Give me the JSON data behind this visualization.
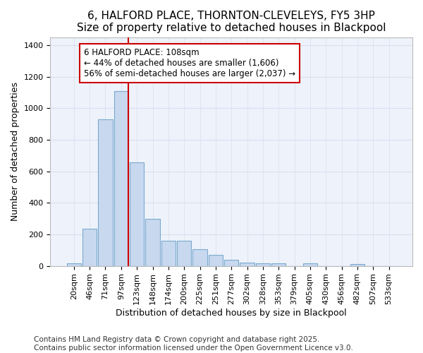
{
  "title_line1": "6, HALFORD PLACE, THORNTON-CLEVELEYS, FY5 3HP",
  "title_line2": "Size of property relative to detached houses in Blackpool",
  "xlabel": "Distribution of detached houses by size in Blackpool",
  "ylabel": "Number of detached properties",
  "bar_color": "#c8d8ee",
  "bar_edge_color": "#7aaad0",
  "background_color": "#eef2fa",
  "fig_background_color": "#ffffff",
  "grid_color": "#d8dff0",
  "annotation_text_line1": "6 HALFORD PLACE: 108sqm",
  "annotation_text_line2": "← 44% of detached houses are smaller (1,606)",
  "annotation_text_line3": "56% of semi-detached houses are larger (2,037) →",
  "annotation_box_color": "#ffffff",
  "annotation_box_edge_color": "#cc0000",
  "categories": [
    "20sqm",
    "46sqm",
    "71sqm",
    "97sqm",
    "123sqm",
    "148sqm",
    "174sqm",
    "200sqm",
    "225sqm",
    "251sqm",
    "277sqm",
    "302sqm",
    "328sqm",
    "353sqm",
    "379sqm",
    "405sqm",
    "430sqm",
    "456sqm",
    "482sqm",
    "507sqm",
    "533sqm"
  ],
  "values": [
    15,
    235,
    930,
    1110,
    655,
    300,
    160,
    160,
    105,
    70,
    40,
    20,
    15,
    15,
    0,
    15,
    0,
    0,
    10,
    0,
    0
  ],
  "ylim": [
    0,
    1450
  ],
  "yticks": [
    0,
    200,
    400,
    600,
    800,
    1000,
    1200,
    1400
  ],
  "red_line_bin_idx": 3,
  "footer_text": "Contains HM Land Registry data © Crown copyright and database right 2025.\nContains public sector information licensed under the Open Government Licence v3.0.",
  "title_fontsize": 11,
  "axis_label_fontsize": 9,
  "tick_fontsize": 8,
  "footer_fontsize": 7.5,
  "annot_fontsize": 8.5
}
